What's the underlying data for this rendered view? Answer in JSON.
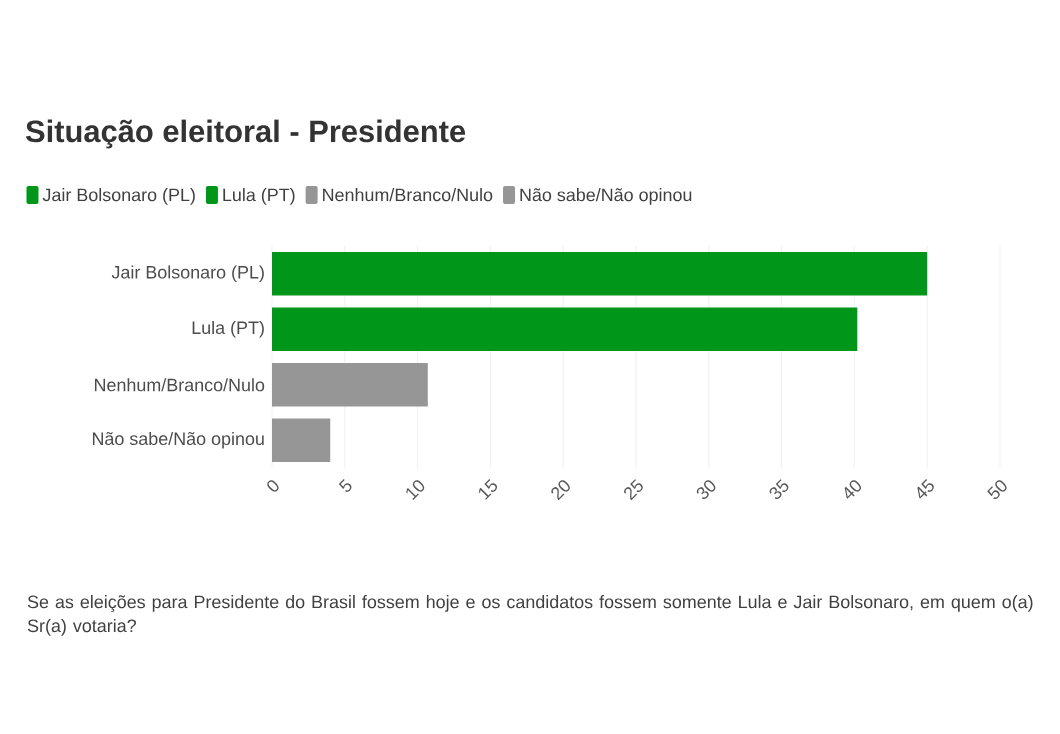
{
  "chart_data": {
    "type": "bar",
    "orientation": "horizontal",
    "title": "Situação eleitoral - Presidente",
    "categories": [
      "Jair Bolsonaro (PL)",
      "Lula (PT)",
      "Nenhum/Branco/Nulo",
      "Não sabe/Não opinou"
    ],
    "series": [
      {
        "name": "Jair Bolsonaro (PL)",
        "color": "#00961a",
        "values": [
          45,
          null,
          null,
          null
        ]
      },
      {
        "name": "Lula (PT)",
        "color": "#00961a",
        "values": [
          null,
          40.2,
          null,
          null
        ]
      },
      {
        "name": "Nenhum/Branco/Nulo",
        "color": "#969696",
        "values": [
          null,
          null,
          10.7,
          null
        ]
      },
      {
        "name": "Não sabe/Não opinou",
        "color": "#969696",
        "values": [
          null,
          null,
          null,
          4
        ]
      }
    ],
    "xlim": [
      0,
      50
    ],
    "xticks": [
      0,
      5,
      10,
      15,
      20,
      25,
      30,
      35,
      40,
      45,
      50
    ],
    "grid": "x",
    "legend": "top left",
    "annotations": [
      "Se as eleições para Presidente do Brasil fossem hoje e os candidatos fossem somente Lula e Jair Bolsonaro, em quem o(a) Sr(a) votaria?"
    ]
  }
}
